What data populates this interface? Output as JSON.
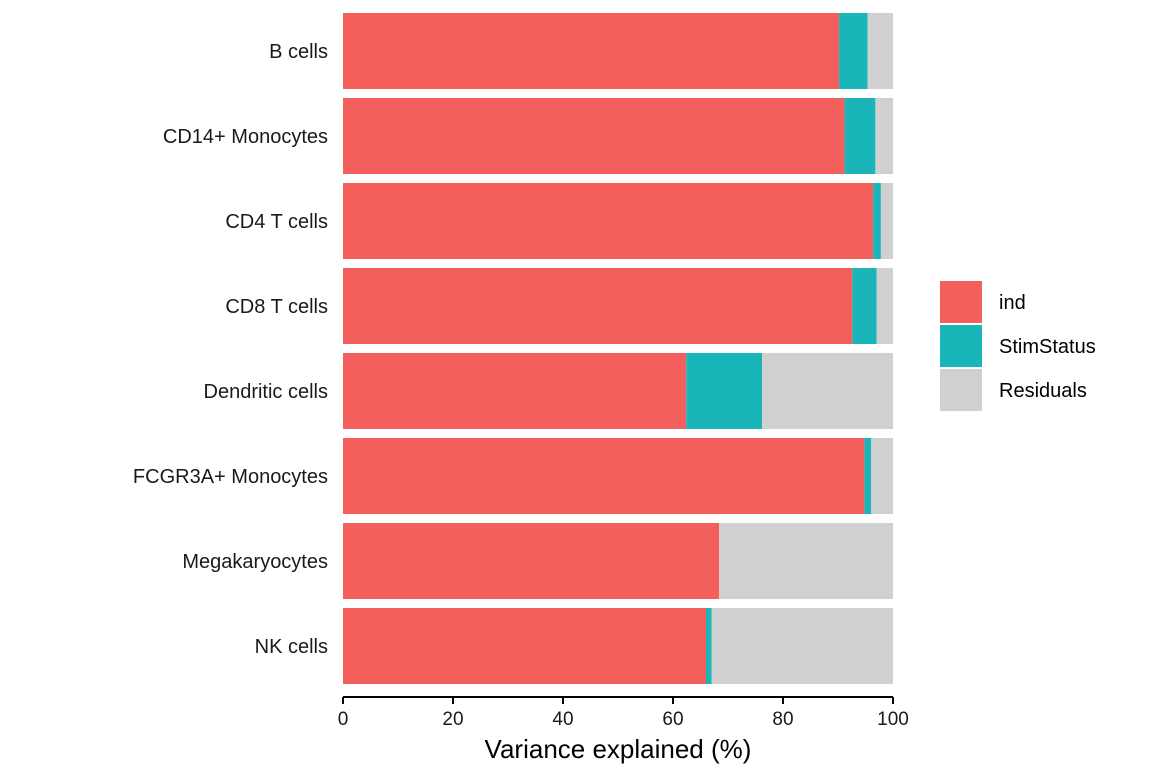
{
  "chart_data": {
    "type": "bar",
    "orientation": "horizontal",
    "stacked": true,
    "xlabel": "Variance explained (%)",
    "ylabel": "",
    "xlim": [
      0,
      100
    ],
    "xticks": [
      0,
      20,
      40,
      60,
      80,
      100
    ],
    "grid": false,
    "legend_position": "right",
    "categories": [
      "B cells",
      "CD14+ Monocytes",
      "CD4 T cells",
      "CD8 T cells",
      "Dendritic cells",
      "FCGR3A+ Monocytes",
      "Megakaryocytes",
      "NK cells"
    ],
    "series": [
      {
        "name": "ind",
        "color": "#F35F5C",
        "values": [
          90.2,
          91.2,
          96.4,
          92.6,
          62.4,
          94.8,
          68.4,
          66.0
        ]
      },
      {
        "name": "StimStatus",
        "color": "#19B5B8",
        "values": [
          5.2,
          5.6,
          1.4,
          4.4,
          13.8,
          1.2,
          0.0,
          1.0
        ]
      },
      {
        "name": "Residuals",
        "color": "#D0D0D0",
        "values": [
          4.6,
          3.2,
          2.2,
          3.0,
          23.8,
          4.0,
          31.6,
          33.0
        ]
      }
    ]
  }
}
